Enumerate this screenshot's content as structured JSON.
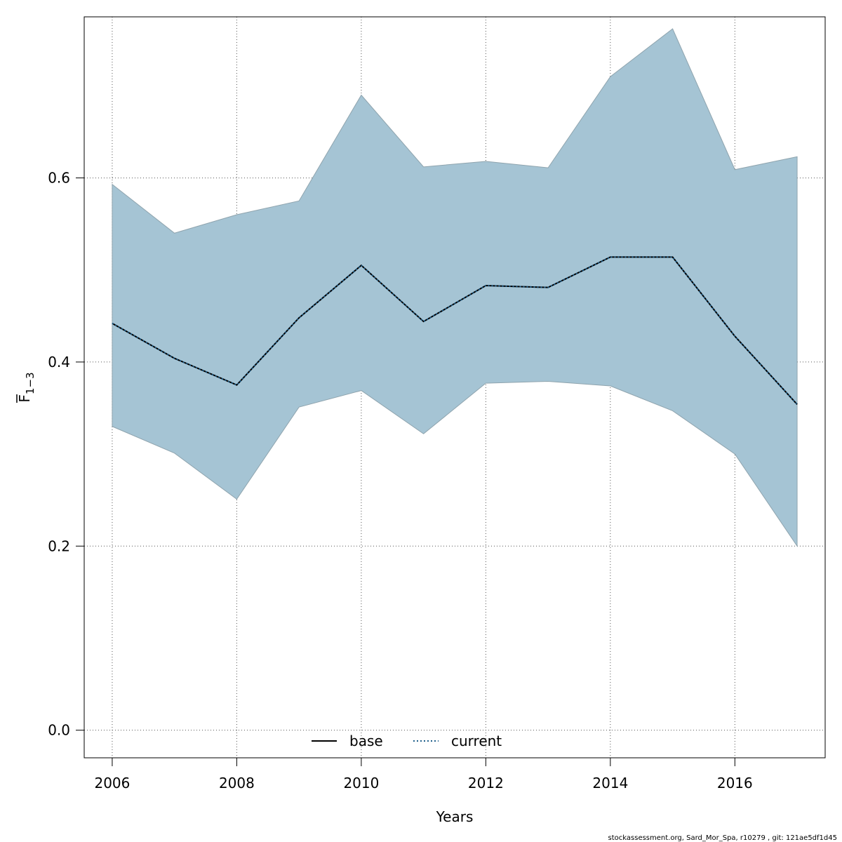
{
  "chart_data": {
    "type": "area",
    "xlabel": "Years",
    "ylabel": {
      "main": "F",
      "sub": "1−3"
    },
    "xlim": [
      2005.55,
      2017.45
    ],
    "ylim": [
      -0.03,
      0.775
    ],
    "x_ticks": [
      2006,
      2008,
      2010,
      2012,
      2014,
      2016
    ],
    "y_ticks": [
      0.0,
      0.2,
      0.4,
      0.6
    ],
    "x_tick_labels": [
      "2006",
      "2008",
      "2010",
      "2012",
      "2014",
      "2016"
    ],
    "y_tick_labels": [
      "0.0",
      "0.2",
      "0.4",
      "0.6"
    ],
    "grid": true,
    "x": [
      2006,
      2007,
      2008,
      2009,
      2010,
      2011,
      2012,
      2013,
      2014,
      2015,
      2016,
      2017
    ],
    "band": {
      "upper": [
        0.593,
        0.54,
        0.56,
        0.575,
        0.69,
        0.612,
        0.618,
        0.611,
        0.71,
        0.762,
        0.609,
        0.623
      ],
      "lower": [
        0.33,
        0.301,
        0.251,
        0.351,
        0.369,
        0.322,
        0.377,
        0.379,
        0.374,
        0.347,
        0.3,
        0.2
      ],
      "color": "#a5c4d4"
    },
    "series": [
      {
        "name": "base",
        "style": "solid",
        "color": "#000000",
        "values": [
          0.442,
          0.404,
          0.375,
          0.448,
          0.505,
          0.444,
          0.483,
          0.481,
          0.514,
          0.514,
          0.428,
          0.354
        ]
      },
      {
        "name": "current",
        "style": "dotted",
        "color": "#1f5f8b",
        "values": [
          0.442,
          0.404,
          0.375,
          0.448,
          0.505,
          0.444,
          0.483,
          0.481,
          0.514,
          0.514,
          0.428,
          0.354
        ]
      }
    ],
    "legend": {
      "placement": "bottom-center",
      "entries": [
        "base",
        "current"
      ]
    },
    "footer": "stockassessment.org, Sard_Mor_Spa, r10279 , git: 121ae5df1d45"
  }
}
